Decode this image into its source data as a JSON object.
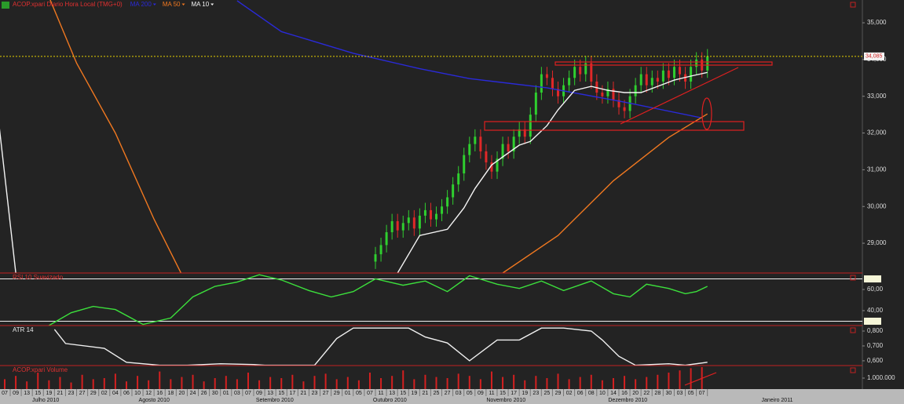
{
  "chart_data": [
    {
      "type": "candlestick",
      "title": "ACOP.xpari Diario Hora Local (TMG+0)",
      "xlim": [
        -0.85,
        155
      ],
      "xticks": [
        {
          "value": 0,
          "label": "07"
        },
        {
          "value": 2,
          "label": "09"
        },
        {
          "value": 4,
          "label": "13"
        },
        {
          "value": 6,
          "label": "15"
        },
        {
          "value": 8,
          "label": "19"
        },
        {
          "value": 10,
          "label": "21"
        },
        {
          "value": 12,
          "label": "23"
        },
        {
          "value": 14,
          "label": "27"
        },
        {
          "value": 16,
          "label": "29"
        },
        {
          "value": 18,
          "label": "02"
        },
        {
          "value": 20,
          "label": "04"
        },
        {
          "value": 22,
          "label": "06"
        },
        {
          "value": 24,
          "label": "10"
        },
        {
          "value": 26,
          "label": "12"
        },
        {
          "value": 28,
          "label": "16"
        },
        {
          "value": 30,
          "label": "18"
        },
        {
          "value": 32,
          "label": "20"
        },
        {
          "value": 34,
          "label": "24"
        },
        {
          "value": 36,
          "label": "26"
        },
        {
          "value": 38,
          "label": "30"
        },
        {
          "value": 40,
          "label": "01"
        },
        {
          "value": 42,
          "label": "03"
        },
        {
          "value": 44,
          "label": "07"
        },
        {
          "value": 46,
          "label": "09"
        },
        {
          "value": 48,
          "label": "13"
        },
        {
          "value": 50,
          "label": "15"
        },
        {
          "value": 52,
          "label": "17"
        },
        {
          "value": 54,
          "label": "21"
        },
        {
          "value": 56,
          "label": "23"
        },
        {
          "value": 58,
          "label": "27"
        },
        {
          "value": 60,
          "label": "29"
        },
        {
          "value": 62,
          "label": "01"
        },
        {
          "value": 64,
          "label": "05"
        },
        {
          "value": 66,
          "label": "07"
        },
        {
          "value": 68,
          "label": "11"
        },
        {
          "value": 70,
          "label": "13"
        },
        {
          "value": 72,
          "label": "15"
        },
        {
          "value": 74,
          "label": "19"
        },
        {
          "value": 76,
          "label": "21"
        },
        {
          "value": 78,
          "label": "25"
        },
        {
          "value": 80,
          "label": "27"
        },
        {
          "value": 82,
          "label": "03"
        },
        {
          "value": 84,
          "label": "05"
        },
        {
          "value": 86,
          "label": "09"
        },
        {
          "value": 88,
          "label": "11"
        },
        {
          "value": 90,
          "label": "15"
        },
        {
          "value": 92,
          "label": "17"
        },
        {
          "value": 94,
          "label": "19"
        },
        {
          "value": 96,
          "label": "23"
        },
        {
          "value": 98,
          "label": "25"
        },
        {
          "value": 100,
          "label": "29"
        },
        {
          "value": 102,
          "label": "02"
        },
        {
          "value": 104,
          "label": "06"
        },
        {
          "value": 106,
          "label": "08"
        },
        {
          "value": 108,
          "label": "10"
        },
        {
          "value": 110,
          "label": "14"
        },
        {
          "value": 112,
          "label": "16"
        },
        {
          "value": 114,
          "label": "20"
        },
        {
          "value": 116,
          "label": "22"
        },
        {
          "value": 118,
          "label": "28"
        },
        {
          "value": 120,
          "label": "30"
        },
        {
          "value": 122,
          "label": "03"
        },
        {
          "value": 124,
          "label": "05"
        },
        {
          "value": 126,
          "label": "07"
        }
      ],
      "month_ticks": [
        {
          "value": 7.4,
          "label": "Julho 2010"
        },
        {
          "value": 27,
          "label": "Agosto 2010"
        },
        {
          "value": 48.8,
          "label": "Setembro 2010"
        },
        {
          "value": 69.6,
          "label": "Outubro 2010"
        },
        {
          "value": 90.6,
          "label": "Novembro 2010"
        },
        {
          "value": 112.6,
          "label": "Dezembro 2010"
        },
        {
          "value": 139.6,
          "label": "Janeiro 2011"
        }
      ],
      "ylim": [
        28190,
        35620
      ],
      "yticks": [
        {
          "value": 29000,
          "label": "29,000"
        },
        {
          "value": 30000,
          "label": "30,000"
        },
        {
          "value": 31000,
          "label": "31,000"
        },
        {
          "value": 32000,
          "label": "32,000"
        },
        {
          "value": 33000,
          "label": "33,000"
        },
        {
          "value": 34000,
          "label": "34,000"
        },
        {
          "value": 35000,
          "label": "35,000"
        }
      ],
      "last_price": {
        "value": 34085,
        "label": "34,085"
      },
      "title_color": "#e03030",
      "up_color": "#2fcf2f",
      "down_color": "#e02828",
      "candles": {
        "x": [
          67,
          68,
          69,
          70,
          71,
          72,
          73,
          74,
          75,
          76,
          77,
          78,
          79,
          80,
          81,
          82,
          83,
          84,
          85,
          86,
          87,
          88,
          89,
          90,
          91,
          92,
          93,
          94,
          95,
          96,
          97,
          98,
          99,
          100,
          101,
          102,
          103,
          104,
          105,
          106,
          107,
          108,
          109,
          110,
          111,
          112,
          113,
          114,
          115,
          116,
          117,
          118,
          119,
          120,
          121,
          122,
          123,
          124,
          125,
          126,
          127
        ],
        "open": [
          28500,
          28700,
          28950,
          29300,
          29600,
          29350,
          29550,
          29700,
          29400,
          29750,
          29900,
          29650,
          29800,
          30000,
          30250,
          30600,
          30900,
          31400,
          31700,
          31900,
          31500,
          31200,
          30950,
          31300,
          31700,
          31500,
          31900,
          32100,
          31900,
          32500,
          33100,
          33600,
          33500,
          33200,
          33000,
          33300,
          33500,
          33800,
          33600,
          33900,
          33400,
          33100,
          33000,
          33200,
          32900,
          32700,
          32600,
          33000,
          33300,
          33600,
          33300,
          33500,
          33400,
          33700,
          33500,
          33800,
          33600,
          33400,
          33800,
          34000,
          33700
        ],
        "high": [
          28900,
          29150,
          29500,
          29800,
          29800,
          29750,
          29900,
          29900,
          29950,
          30100,
          30100,
          30000,
          30200,
          30450,
          30800,
          31100,
          31600,
          31900,
          32100,
          32100,
          31700,
          31400,
          31500,
          31900,
          31900,
          32100,
          32300,
          32300,
          32700,
          33300,
          33800,
          33800,
          33700,
          33400,
          33500,
          33700,
          34000,
          34000,
          34100,
          34100,
          33600,
          33300,
          33400,
          33400,
          33100,
          32900,
          33200,
          33500,
          33800,
          33800,
          33700,
          33700,
          33900,
          33900,
          34000,
          34000,
          33800,
          34000,
          34200,
          34200,
          34285
        ],
        "low": [
          28300,
          28500,
          28750,
          29100,
          29150,
          29150,
          29350,
          29200,
          29200,
          29550,
          29450,
          29450,
          29600,
          29800,
          30050,
          30400,
          30700,
          31200,
          31500,
          31300,
          31000,
          30750,
          30750,
          31100,
          31300,
          31300,
          31700,
          31700,
          31700,
          32300,
          32900,
          33300,
          33000,
          32800,
          32800,
          33100,
          33300,
          33400,
          33400,
          33200,
          32900,
          32800,
          32800,
          32700,
          32500,
          32400,
          32400,
          32800,
          33100,
          33100,
          33100,
          33200,
          33200,
          33300,
          33300,
          33400,
          33200,
          33200,
          33600,
          33500,
          33500
        ],
        "close": [
          28700,
          28950,
          29300,
          29600,
          29350,
          29550,
          29700,
          29400,
          29750,
          29900,
          29650,
          29800,
          30000,
          30250,
          30600,
          30900,
          31400,
          31700,
          31900,
          31500,
          31200,
          30950,
          31300,
          31700,
          31500,
          31900,
          32100,
          31900,
          32500,
          33100,
          33600,
          33500,
          33200,
          33000,
          33300,
          33500,
          33800,
          33600,
          33900,
          33400,
          33100,
          33000,
          33200,
          32900,
          32700,
          32600,
          33000,
          33300,
          33600,
          33300,
          33500,
          33400,
          33700,
          33500,
          33800,
          33600,
          33400,
          33800,
          34000,
          33700,
          34085
        ]
      },
      "series": [
        {
          "name": "MA 200",
          "color": "#2a2ad8",
          "x": [
            42,
            50,
            63,
            75,
            84,
            98,
            112,
            126
          ],
          "values": [
            35600,
            34760,
            34170,
            33750,
            33480,
            33230,
            32840,
            32410
          ]
        },
        {
          "name": "MA 50",
          "color": "#f07820",
          "x": [
            8,
            13,
            20,
            27,
            32,
            60,
            90,
            100,
            110,
            120,
            127
          ],
          "values": [
            35700,
            33900,
            32000,
            29650,
            28150,
            null,
            28190,
            29210,
            30700,
            31880,
            32520
          ]
        },
        {
          "name": "MA 10",
          "color": "#f4f4f4",
          "x": [
            -1,
            2,
            50,
            71,
            75,
            80,
            83,
            85,
            88,
            90,
            93,
            95,
            98,
            100,
            103,
            106,
            109,
            112,
            115,
            118,
            121,
            124,
            127
          ],
          "values": [
            32200,
            28190,
            null,
            28190,
            29210,
            29380,
            29960,
            30490,
            31130,
            31350,
            31670,
            31770,
            32200,
            32630,
            33160,
            33270,
            33160,
            33100,
            33100,
            33270,
            33440,
            33550,
            33650
          ]
        }
      ]
    },
    {
      "type": "line",
      "title": "RSI 10 Suavizado",
      "title_color": "#e03030",
      "ylim": [
        25.9,
        75.6
      ],
      "yticks": [
        {
          "value": 60,
          "label": "60,00"
        },
        {
          "value": 40,
          "label": "40,00"
        }
      ],
      "levels": [
        70,
        30
      ],
      "series": [
        {
          "color": "#3ce03c",
          "x": [
            8,
            12,
            16,
            20,
            25,
            30,
            34,
            38,
            42,
            46,
            50,
            55,
            59,
            63,
            67,
            72,
            76,
            80,
            84,
            89,
            93,
            97,
            101,
            106,
            110,
            113,
            116,
            120,
            123,
            125,
            127
          ],
          "values": [
            26,
            38,
            44,
            41,
            27,
            33,
            53,
            63,
            67,
            74,
            69,
            59,
            53,
            58,
            70,
            64,
            68,
            58,
            73,
            65,
            61,
            68,
            59,
            68,
            56,
            53,
            65,
            61,
            56,
            58,
            63
          ]
        }
      ]
    },
    {
      "type": "line",
      "title": "ATR 14",
      "title_color": "#e8e8e8",
      "ylim": [
        0.568,
        0.837
      ],
      "yticks": [
        {
          "value": 0.8,
          "label": "0,800"
        },
        {
          "value": 0.7,
          "label": "0,700"
        },
        {
          "value": 0.6,
          "label": "0,600"
        }
      ],
      "series": [
        {
          "color": "#f0f0f0",
          "x": [
            9,
            11,
            18,
            22,
            28,
            33,
            39,
            45,
            47,
            56,
            60,
            63,
            73,
            76,
            80,
            84,
            89,
            93,
            97,
            101,
            106,
            108,
            111,
            114,
            120,
            123,
            127
          ],
          "values": [
            0.811,
            0.716,
            0.684,
            0.59,
            0.57,
            0.57,
            0.58,
            0.575,
            0.57,
            0.57,
            0.75,
            0.82,
            0.82,
            0.76,
            0.72,
            0.6,
            0.74,
            0.74,
            0.82,
            0.82,
            0.8,
            0.74,
            0.63,
            0.57,
            0.58,
            0.57,
            0.59
          ]
        }
      ]
    },
    {
      "type": "bar",
      "title": "ACOP.xpari Volume",
      "title_color": "#e03030",
      "ylim": [
        0,
        2140000
      ],
      "yticks": [
        {
          "value": 1000000,
          "label": "1.000.000"
        }
      ],
      "series": [
        {
          "color": "#d42020",
          "x": [
            0,
            2,
            4,
            6,
            8,
            10,
            12,
            14,
            16,
            18,
            20,
            22,
            24,
            26,
            28,
            30,
            32,
            34,
            36,
            38,
            40,
            42,
            44,
            46,
            48,
            50,
            52,
            54,
            56,
            58,
            60,
            62,
            64,
            66,
            68,
            70,
            72,
            74,
            76,
            78,
            80,
            82,
            84,
            86,
            88,
            90,
            92,
            94,
            96,
            98,
            100,
            102,
            104,
            106,
            108,
            110,
            112,
            114,
            116,
            118,
            120,
            122,
            124,
            126
          ],
          "values": [
            900000,
            1200000,
            700000,
            1500000,
            800000,
            1100000,
            600000,
            1300000,
            900000,
            1000000,
            1400000,
            700000,
            1200000,
            800000,
            1600000,
            900000,
            1100000,
            1300000,
            700000,
            1000000,
            1200000,
            900000,
            1500000,
            800000,
            1100000,
            1000000,
            1300000,
            700000,
            1200000,
            1400000,
            900000,
            1100000,
            800000,
            1500000,
            1000000,
            1200000,
            1700000,
            900000,
            1300000,
            1100000,
            1000000,
            1400000,
            1200000,
            900000,
            1600000,
            1100000,
            1300000,
            800000,
            1200000,
            1000000,
            1400000,
            900000,
            1100000,
            1300000,
            800000,
            1000000,
            1200000,
            900000,
            1100000,
            1300000,
            1500000,
            1700000,
            1900000,
            2000000
          ]
        }
      ]
    }
  ]
}
